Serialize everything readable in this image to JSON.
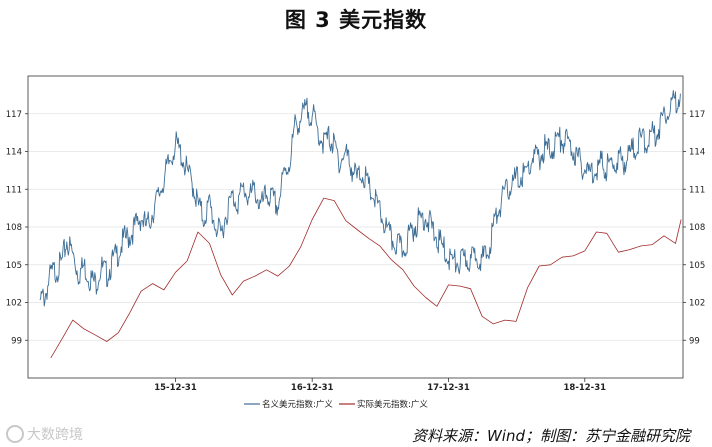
{
  "chart_data": {
    "type": "line",
    "title": "图 3 美元指数",
    "x_ticks": [
      "15-12-31",
      "16-12-31",
      "17-12-31",
      "18-12-31"
    ],
    "ylim": [
      96,
      120
    ],
    "y_ticks": [
      99,
      102,
      105,
      108,
      111,
      114,
      117
    ],
    "grid": true,
    "legend_position": "bottom",
    "series": [
      {
        "name": "名义美元指数:广义",
        "color": "#3e6e96",
        "points": [
          [
            "2015-01-02",
            102.2
          ],
          [
            "2015-01-15",
            102.5
          ],
          [
            "2015-01-31",
            104.2
          ],
          [
            "2015-02-15",
            104.6
          ],
          [
            "2015-03-01",
            105.1
          ],
          [
            "2015-03-15",
            106.9
          ],
          [
            "2015-03-31",
            105.8
          ],
          [
            "2015-04-15",
            104.3
          ],
          [
            "2015-04-30",
            104.9
          ],
          [
            "2015-05-15",
            104.0
          ],
          [
            "2015-05-31",
            103.5
          ],
          [
            "2015-06-15",
            104.8
          ],
          [
            "2015-06-30",
            104.2
          ],
          [
            "2015-07-15",
            105.2
          ],
          [
            "2015-07-31",
            106.0
          ],
          [
            "2015-08-15",
            107.0
          ],
          [
            "2015-08-31",
            107.3
          ],
          [
            "2015-09-15",
            108.1
          ],
          [
            "2015-09-30",
            108.8
          ],
          [
            "2015-10-15",
            107.9
          ],
          [
            "2015-10-31",
            109.2
          ],
          [
            "2015-11-15",
            110.4
          ],
          [
            "2015-11-30",
            111.8
          ],
          [
            "2015-12-15",
            113.2
          ],
          [
            "2015-12-31",
            114.6
          ],
          [
            "2016-01-15",
            113.8
          ],
          [
            "2016-01-31",
            112.4
          ],
          [
            "2016-02-15",
            111.4
          ],
          [
            "2016-02-29",
            109.8
          ],
          [
            "2016-03-15",
            108.7
          ],
          [
            "2016-03-31",
            109.8
          ],
          [
            "2016-04-15",
            108.2
          ],
          [
            "2016-04-30",
            107.3
          ],
          [
            "2016-05-15",
            109.1
          ],
          [
            "2016-05-31",
            110.4
          ],
          [
            "2016-06-15",
            110.0
          ],
          [
            "2016-06-30",
            111.1
          ],
          [
            "2016-07-15",
            110.3
          ],
          [
            "2016-07-31",
            111.0
          ],
          [
            "2016-08-15",
            109.5
          ],
          [
            "2016-08-31",
            110.6
          ],
          [
            "2016-09-15",
            110.2
          ],
          [
            "2016-09-30",
            109.6
          ],
          [
            "2016-10-15",
            112.0
          ],
          [
            "2016-10-31",
            113.1
          ],
          [
            "2016-11-15",
            116.0
          ],
          [
            "2016-11-30",
            116.6
          ],
          [
            "2016-12-15",
            117.3
          ],
          [
            "2016-12-31",
            117.0
          ],
          [
            "2017-01-15",
            115.6
          ],
          [
            "2017-01-31",
            114.7
          ],
          [
            "2017-02-15",
            115.1
          ],
          [
            "2017-02-28",
            114.4
          ],
          [
            "2017-03-15",
            113.2
          ],
          [
            "2017-03-31",
            113.9
          ],
          [
            "2017-04-15",
            112.8
          ],
          [
            "2017-04-30",
            111.8
          ],
          [
            "2017-05-15",
            112.4
          ],
          [
            "2017-05-31",
            111.1
          ],
          [
            "2017-06-15",
            110.3
          ],
          [
            "2017-06-30",
            109.2
          ],
          [
            "2017-07-15",
            108.0
          ],
          [
            "2017-07-31",
            107.0
          ],
          [
            "2017-08-15",
            106.6
          ],
          [
            "2017-08-31",
            106.1
          ],
          [
            "2017-09-15",
            107.2
          ],
          [
            "2017-09-30",
            108.0
          ],
          [
            "2017-10-15",
            108.6
          ],
          [
            "2017-10-31",
            108.9
          ],
          [
            "2017-11-15",
            108.0
          ],
          [
            "2017-11-30",
            107.1
          ],
          [
            "2017-12-15",
            106.4
          ],
          [
            "2017-12-31",
            105.6
          ],
          [
            "2018-01-15",
            105.2
          ],
          [
            "2018-01-31",
            105.1
          ],
          [
            "2018-02-15",
            105.5
          ],
          [
            "2018-02-28",
            105.2
          ],
          [
            "2018-03-15",
            106.0
          ],
          [
            "2018-03-31",
            105.4
          ],
          [
            "2018-04-15",
            105.8
          ],
          [
            "2018-04-30",
            108.0
          ],
          [
            "2018-05-15",
            109.6
          ],
          [
            "2018-05-31",
            110.6
          ],
          [
            "2018-06-15",
            111.3
          ],
          [
            "2018-06-30",
            111.8
          ],
          [
            "2018-07-15",
            112.0
          ],
          [
            "2018-07-31",
            112.5
          ],
          [
            "2018-08-15",
            113.6
          ],
          [
            "2018-08-31",
            113.4
          ],
          [
            "2018-09-15",
            114.3
          ],
          [
            "2018-09-30",
            114.0
          ],
          [
            "2018-10-15",
            114.8
          ],
          [
            "2018-10-31",
            115.0
          ],
          [
            "2018-11-15",
            114.7
          ],
          [
            "2018-11-30",
            114.1
          ],
          [
            "2018-12-15",
            113.3
          ],
          [
            "2018-12-31",
            112.6
          ],
          [
            "2019-01-15",
            112.3
          ],
          [
            "2019-01-31",
            112.8
          ],
          [
            "2019-02-15",
            113.0
          ],
          [
            "2019-02-28",
            112.7
          ],
          [
            "2019-03-15",
            113.0
          ],
          [
            "2019-03-31",
            113.4
          ],
          [
            "2019-04-15",
            113.2
          ],
          [
            "2019-04-30",
            113.9
          ],
          [
            "2019-05-15",
            114.3
          ],
          [
            "2019-05-31",
            115.0
          ],
          [
            "2019-06-15",
            114.8
          ],
          [
            "2019-06-30",
            115.3
          ],
          [
            "2019-07-15",
            115.7
          ],
          [
            "2019-07-31",
            117.0
          ],
          [
            "2019-08-15",
            117.6
          ],
          [
            "2019-08-31",
            118.0
          ],
          [
            "2019-09-13",
            118.6
          ]
        ]
      },
      {
        "name": "实际美元指数:广义",
        "color": "#a12b2b",
        "points": [
          [
            "2015-01-31",
            97.6
          ],
          [
            "2015-02-28",
            99.0
          ],
          [
            "2015-03-31",
            100.6
          ],
          [
            "2015-04-30",
            99.9
          ],
          [
            "2015-05-31",
            99.4
          ],
          [
            "2015-06-30",
            98.9
          ],
          [
            "2015-07-31",
            99.6
          ],
          [
            "2015-08-31",
            101.2
          ],
          [
            "2015-09-30",
            102.9
          ],
          [
            "2015-10-31",
            103.5
          ],
          [
            "2015-11-30",
            103.0
          ],
          [
            "2015-12-31",
            104.4
          ],
          [
            "2016-01-31",
            105.3
          ],
          [
            "2016-02-29",
            107.6
          ],
          [
            "2016-03-31",
            106.7
          ],
          [
            "2016-04-30",
            104.2
          ],
          [
            "2016-05-31",
            102.6
          ],
          [
            "2016-06-30",
            103.7
          ],
          [
            "2016-07-31",
            104.1
          ],
          [
            "2016-08-31",
            104.6
          ],
          [
            "2016-09-30",
            104.1
          ],
          [
            "2016-10-31",
            104.9
          ],
          [
            "2016-11-30",
            106.4
          ],
          [
            "2016-12-31",
            108.6
          ],
          [
            "2017-01-31",
            110.3
          ],
          [
            "2017-02-28",
            110.1
          ],
          [
            "2017-03-31",
            108.5
          ],
          [
            "2017-04-30",
            107.8
          ],
          [
            "2017-05-31",
            107.1
          ],
          [
            "2017-06-30",
            106.5
          ],
          [
            "2017-07-31",
            105.4
          ],
          [
            "2017-08-31",
            104.6
          ],
          [
            "2017-09-30",
            103.3
          ],
          [
            "2017-10-31",
            102.4
          ],
          [
            "2017-11-30",
            101.7
          ],
          [
            "2017-12-31",
            103.4
          ],
          [
            "2018-01-31",
            103.3
          ],
          [
            "2018-02-28",
            103.1
          ],
          [
            "2018-03-31",
            100.9
          ],
          [
            "2018-04-30",
            100.3
          ],
          [
            "2018-05-31",
            100.6
          ],
          [
            "2018-06-30",
            100.5
          ],
          [
            "2018-07-31",
            103.2
          ],
          [
            "2018-08-31",
            104.9
          ],
          [
            "2018-09-30",
            105.0
          ],
          [
            "2018-10-31",
            105.6
          ],
          [
            "2018-11-30",
            105.7
          ],
          [
            "2018-12-31",
            106.1
          ],
          [
            "2019-01-31",
            107.6
          ],
          [
            "2019-02-28",
            107.5
          ],
          [
            "2019-03-31",
            106.0
          ],
          [
            "2019-04-30",
            106.2
          ],
          [
            "2019-05-31",
            106.5
          ],
          [
            "2019-06-30",
            106.6
          ],
          [
            "2019-07-31",
            107.3
          ],
          [
            "2019-08-31",
            106.7
          ],
          [
            "2019-09-15",
            108.6
          ]
        ]
      }
    ]
  },
  "source_text": "资料来源：Wind；制图：苏宁金融研究院",
  "watermark_text": "大数跨境"
}
